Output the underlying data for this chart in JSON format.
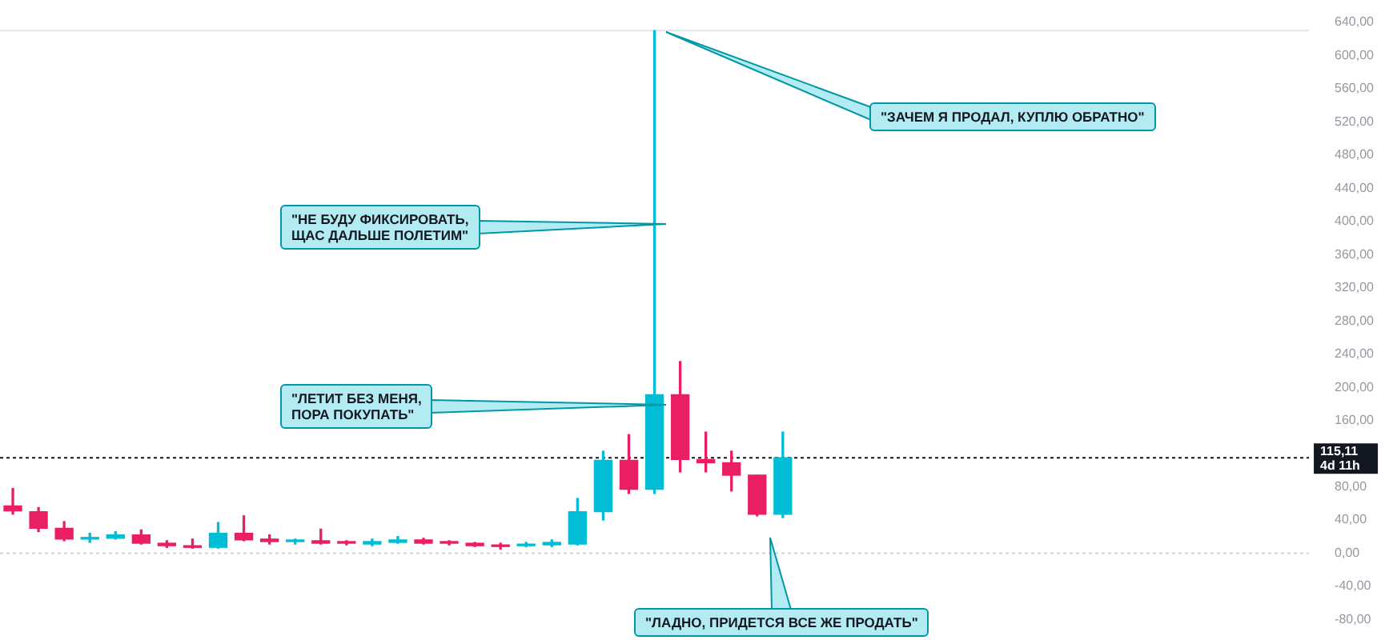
{
  "chart_data": {
    "type": "candlestick",
    "categories": [
      null,
      null,
      null,
      null,
      null,
      null,
      null,
      null,
      null,
      null,
      null,
      null,
      null,
      null,
      null,
      null,
      null,
      null,
      null,
      null,
      null,
      null,
      null,
      null,
      null,
      null,
      null,
      null,
      null,
      null,
      null,
      null,
      null,
      null,
      null,
      null,
      null,
      null,
      null,
      null,
      null,
      null,
      null,
      null,
      null,
      null,
      null,
      null,
      null,
      null,
      null
    ],
    "ohlc": [
      [
        57,
        78,
        47,
        51
      ],
      [
        50,
        55,
        26,
        30
      ],
      [
        30,
        38,
        15,
        17
      ],
      [
        17,
        24,
        13,
        19
      ],
      [
        18,
        26,
        17,
        22
      ],
      [
        22,
        28,
        11,
        12
      ],
      [
        12,
        15,
        7,
        9
      ],
      [
        9,
        17,
        6,
        7
      ],
      [
        7,
        37,
        6,
        24
      ],
      [
        24,
        45,
        15,
        16
      ],
      [
        17,
        22,
        11,
        14
      ],
      [
        14,
        17,
        11,
        15
      ],
      [
        15,
        29,
        11,
        12
      ],
      [
        14,
        15,
        10,
        12
      ],
      [
        11,
        17,
        9,
        14
      ],
      [
        13,
        20,
        12,
        16
      ],
      [
        16,
        18,
        11,
        12
      ],
      [
        14,
        15,
        10,
        12
      ],
      [
        12,
        13,
        8,
        9
      ],
      [
        9,
        12,
        5,
        8
      ],
      [
        9,
        13,
        8,
        10
      ],
      [
        10,
        16,
        8,
        13
      ],
      [
        11,
        66,
        10,
        50
      ],
      [
        50,
        123,
        40,
        112
      ],
      [
        112,
        143,
        72,
        77
      ],
      [
        77,
        630,
        72,
        191
      ],
      [
        191,
        231,
        98,
        113
      ],
      [
        113,
        146,
        98,
        109
      ],
      [
        109,
        123,
        75,
        94
      ],
      [
        94,
        94,
        45,
        47
      ],
      [
        47,
        146,
        43,
        115.11
      ],
      null,
      null,
      null,
      null,
      null,
      null,
      null,
      null,
      null,
      null,
      null,
      null,
      null,
      null,
      null,
      null,
      null,
      null,
      null,
      null
    ],
    "colors": [
      "#e91e63",
      "#e91e63",
      "#e91e63",
      "#00bcd4",
      "#00bcd4",
      "#e91e63",
      "#e91e63",
      "#e91e63",
      "#00bcd4",
      "#e91e63",
      "#e91e63",
      "#00bcd4",
      "#e91e63",
      "#e91e63",
      "#00bcd4",
      "#00bcd4",
      "#e91e63",
      "#e91e63",
      "#e91e63",
      "#e91e63",
      "#00bcd4",
      "#00bcd4",
      "#00bcd4",
      "#00bcd4",
      "#e91e63",
      "#00bcd4",
      "#e91e63",
      "#e91e63",
      "#e91e63",
      "#e91e63",
      "#00bcd4",
      null,
      null,
      null,
      null,
      null,
      null,
      null,
      null,
      null,
      null,
      null,
      null,
      null,
      null,
      null,
      null,
      null,
      null,
      null,
      null
    ],
    "ylim": [
      -80,
      640
    ],
    "yticks": [
      {
        "value": -80,
        "label": "-80,00"
      },
      {
        "value": -40,
        "label": "-40,00"
      },
      {
        "value": 0,
        "label": "0,00"
      },
      {
        "value": 40,
        "label": "40,00"
      },
      {
        "value": 80,
        "label": "80,00"
      },
      {
        "value": 160,
        "label": "160,00"
      },
      {
        "value": 200,
        "label": "200,00"
      },
      {
        "value": 240,
        "label": "240,00"
      },
      {
        "value": 280,
        "label": "280,00"
      },
      {
        "value": 320,
        "label": "320,00"
      },
      {
        "value": 360,
        "label": "360,00"
      },
      {
        "value": 400,
        "label": "400,00"
      },
      {
        "value": 440,
        "label": "440,00"
      },
      {
        "value": 480,
        "label": "480,00"
      },
      {
        "value": 520,
        "label": "520,00"
      },
      {
        "value": 560,
        "label": "560,00"
      },
      {
        "value": 600,
        "label": "600,00"
      },
      {
        "value": 640,
        "label": "640,00"
      }
    ],
    "tick_labels": "y",
    "grid": false,
    "ref_lines": [
      {
        "axis": "y",
        "value": 115.11,
        "label": "115,11\n4d 11h",
        "line_style": "dotted",
        "color": "#131722"
      },
      {
        "axis": "y",
        "value": 0,
        "line_style": "dotted",
        "color": "#d1d4dc"
      },
      {
        "axis": "y",
        "value": 630,
        "line_style": "solid",
        "color": "#e0e3eb"
      }
    ],
    "annotations": [
      "\"ЗАЧЕМ Я ПРОДАЛ, КУПЛЮ ОБРАТНО\"",
      "\"НЕ БУДУ ФИКСИРОВАТЬ,\nЩАС ДАЛЬШЕ ПОЛЕТИМ\"",
      "\"ЛЕТИТ БЕЗ МЕНЯ,\nПОРА ПОКУПАТЬ\"",
      "\"ЛАДНО, ПРИДЕТСЯ ВСЕ ЖЕ ПРОДАТЬ\""
    ]
  }
}
